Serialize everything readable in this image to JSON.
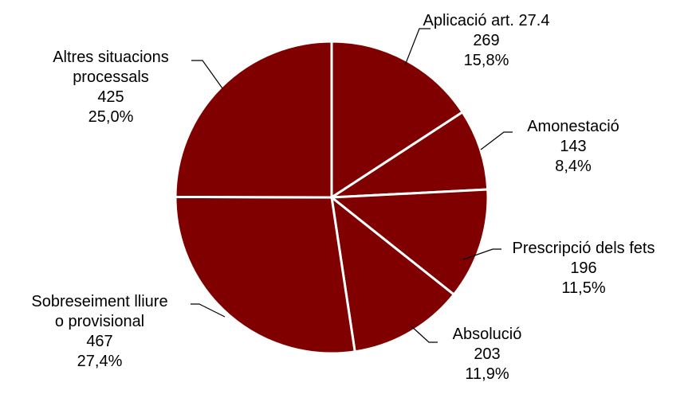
{
  "chart_data": {
    "type": "pie",
    "slice_color": "#800000",
    "border_color": "#ffffff",
    "slices": [
      {
        "label_lines": [
          "Aplicació art. 27.4"
        ],
        "value": 269,
        "value_label": "269",
        "pct_label": "15,8%"
      },
      {
        "label_lines": [
          "Amonestació"
        ],
        "value": 143,
        "value_label": "143",
        "pct_label": "8,4%"
      },
      {
        "label_lines": [
          "Prescripció dels fets"
        ],
        "value": 196,
        "value_label": "196",
        "pct_label": "11,5%"
      },
      {
        "label_lines": [
          "Absolució"
        ],
        "value": 203,
        "value_label": "203",
        "pct_label": "11,9%"
      },
      {
        "label_lines": [
          "Sobreseiment lliure",
          "o provisional"
        ],
        "value": 467,
        "value_label": "467",
        "pct_label": "27,4%"
      },
      {
        "label_lines": [
          "Altres situacions",
          "processals"
        ],
        "value": 425,
        "value_label": "425",
        "pct_label": "25,0%"
      }
    ]
  }
}
